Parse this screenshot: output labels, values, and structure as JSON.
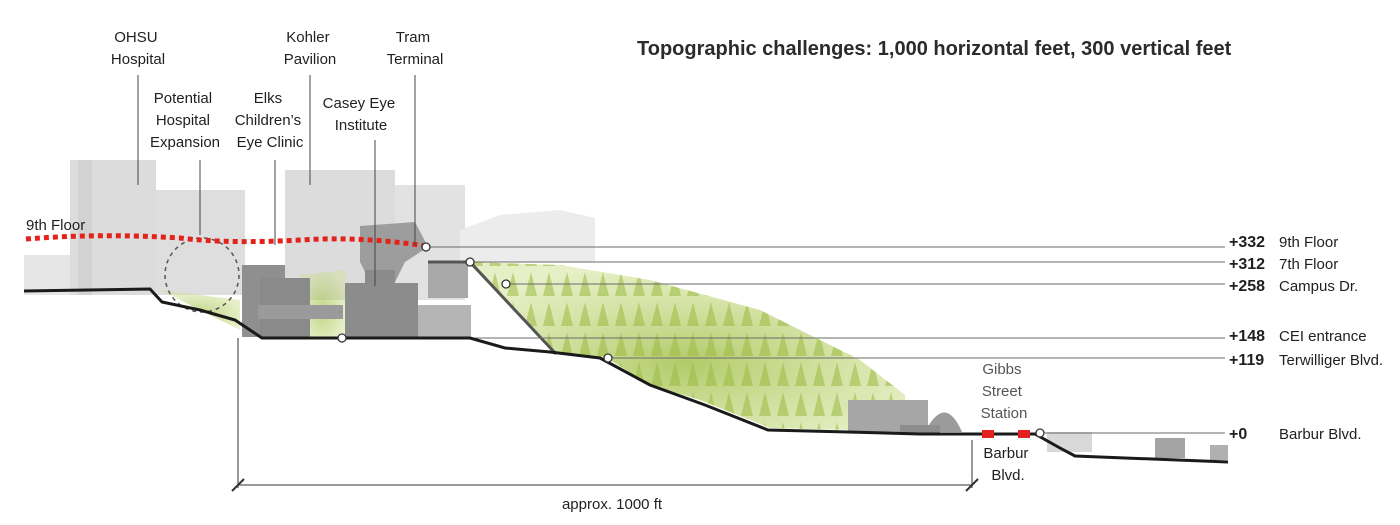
{
  "title": "Topographic challenges: 1,000 horizontal feet, 300 vertical feet",
  "labels": {
    "ohsu_hospital": [
      "OHSU",
      "Hospital"
    ],
    "kohler_pavilion": [
      "Kohler",
      "Pavilion"
    ],
    "tram_terminal": [
      "Tram",
      "Terminal"
    ],
    "potential_expansion": [
      "Potential",
      "Hospital",
      "Expansion"
    ],
    "elks_clinic": [
      "Elks",
      "Children’s",
      "Eye Clinic"
    ],
    "casey_eye": [
      "Casey Eye",
      "Institute"
    ],
    "gibbs_station": [
      "Gibbs",
      "Street",
      "Station"
    ],
    "barbur_blvd_label": [
      "Barbur",
      "Blvd."
    ],
    "ninth_floor_left": "9th Floor",
    "dimension": "approx. 1000 ft"
  },
  "elevations": [
    {
      "value": "+332",
      "name": "9th Floor"
    },
    {
      "value": "+312",
      "name": "7th Floor"
    },
    {
      "value": "+258",
      "name": "Campus Dr."
    },
    {
      "value": "+148",
      "name": "CEI entrance"
    },
    {
      "value": "+119",
      "name": "Terwilliger Blvd."
    },
    {
      "value": "+0",
      "name": "Barbur Blvd."
    }
  ],
  "colors": {
    "ground_line": "#1a1a1a",
    "floor_line": "#e3231b",
    "vegetation": "#a9c653",
    "building_light": "#d4d4d4",
    "building_dark": "#9c9c9c",
    "station_marker": "#e3231b"
  }
}
